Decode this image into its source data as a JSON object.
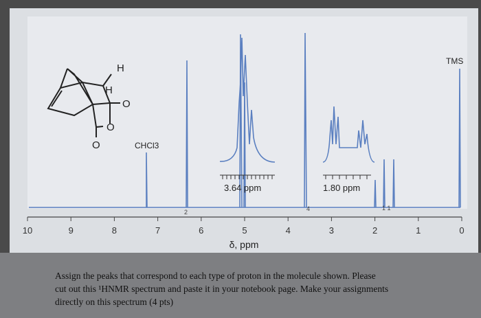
{
  "spectrum": {
    "axis_labels": [
      "10",
      "9",
      "8",
      "7",
      "6",
      "5",
      "4",
      "3",
      "2",
      "1",
      "0"
    ],
    "axis_title": "δ, ppm",
    "peak_labels": {
      "tms": "TMS",
      "solvent": "CHCl3"
    },
    "insets": [
      "3.64 ppm",
      "1.80 ppm"
    ],
    "integrations": [
      "2",
      "4",
      "1 1"
    ]
  },
  "molecule": {
    "atoms": [
      "H",
      "H",
      "O",
      "O",
      "O"
    ]
  },
  "caption": {
    "lines": [
      "Assign the peaks that correspond to each type of proton in the molecule shown. Please",
      "cut out this ¹HNMR spectrum and paste it in your notebook page. Make your assignments",
      "directly on this spectrum (4 pts)"
    ]
  }
}
